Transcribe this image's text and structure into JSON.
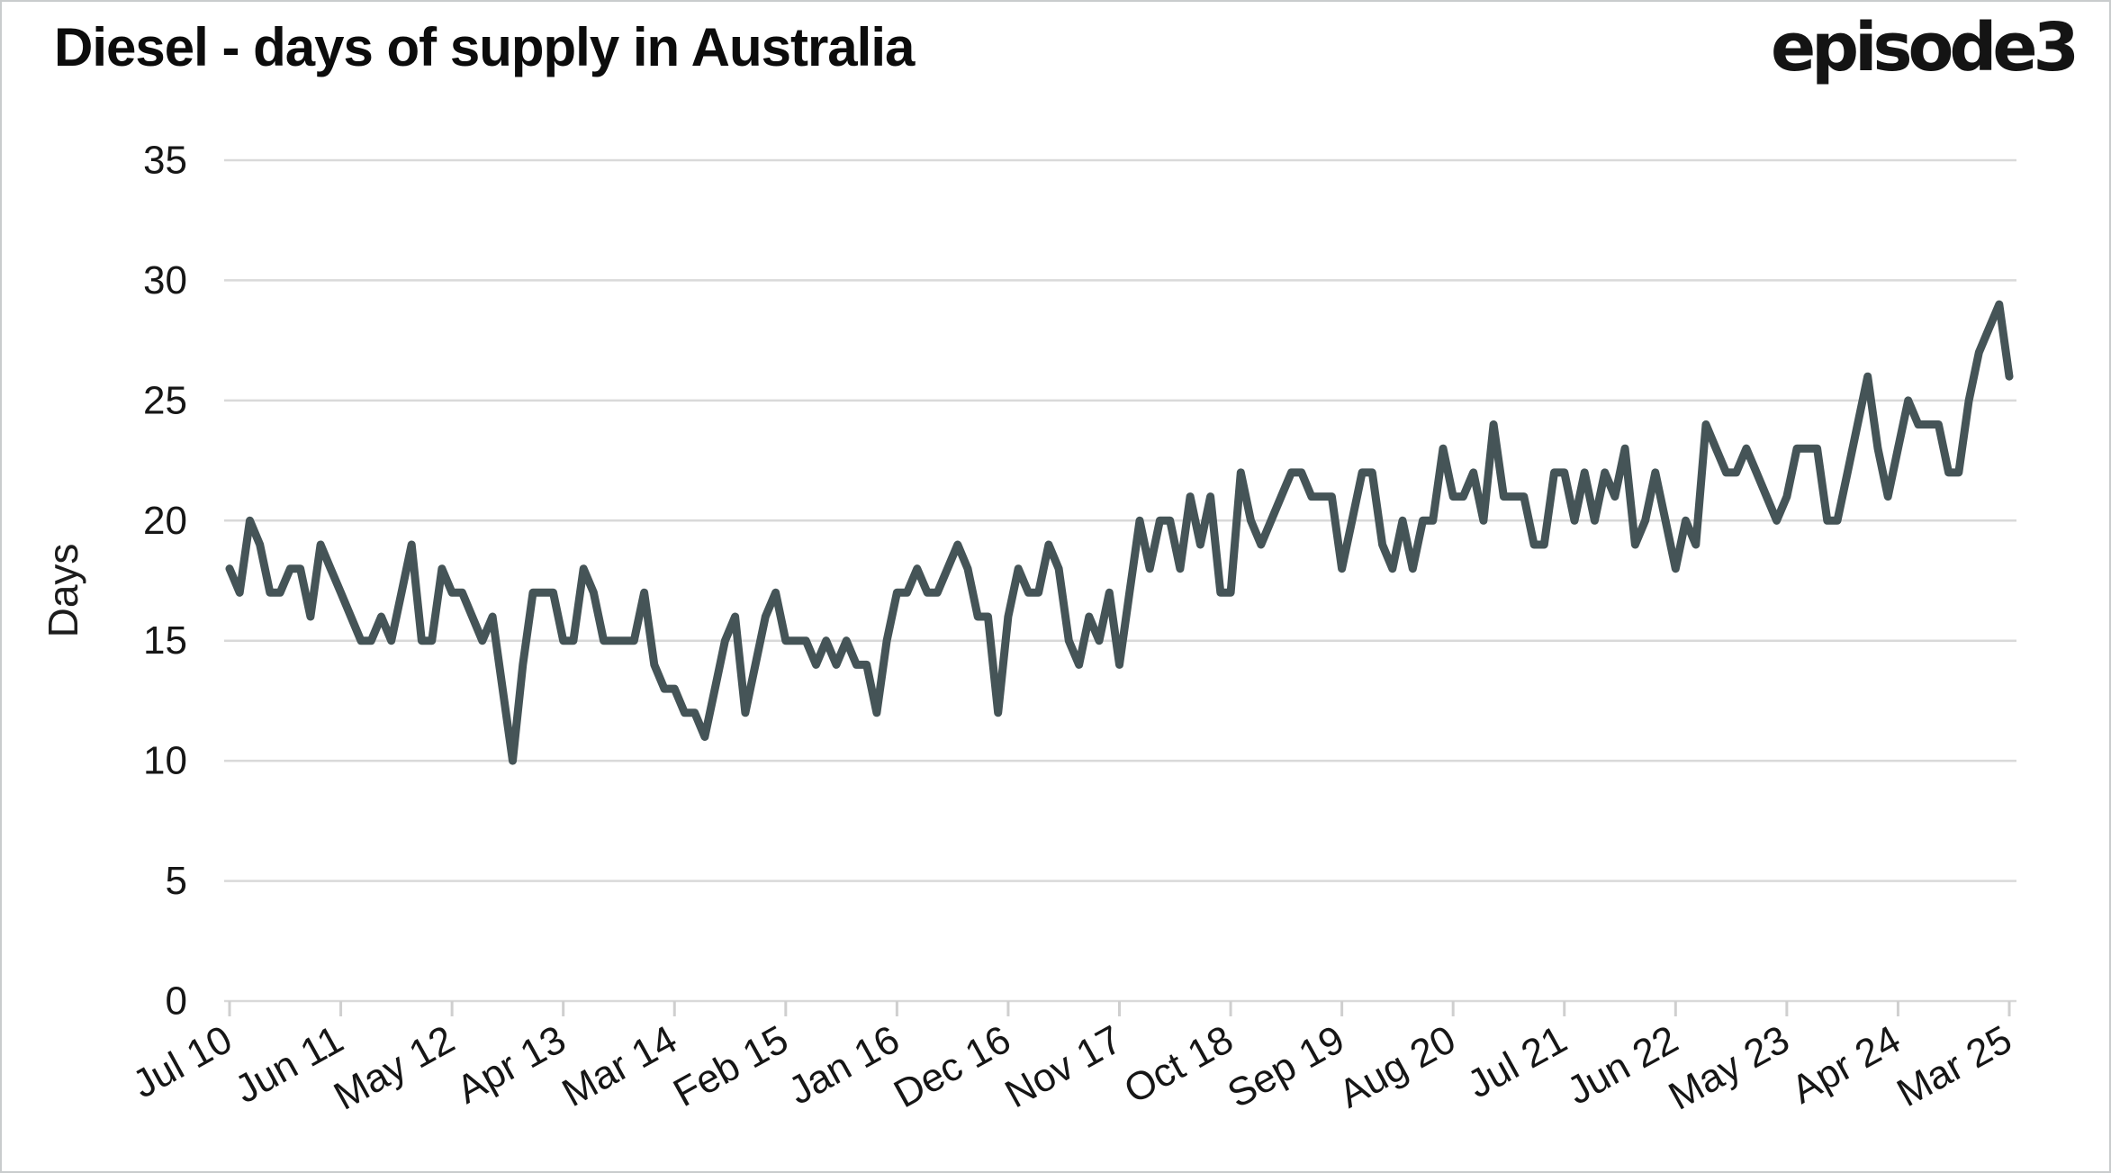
{
  "header": {
    "title": "Diesel - days of supply in Australia",
    "brand": "episode3"
  },
  "y_axis": {
    "label": "Days",
    "ticks": [
      0,
      5,
      10,
      15,
      20,
      25,
      30,
      35
    ]
  },
  "x_axis": {
    "ticks": [
      "Jul 10",
      "Jun 11",
      "May 12",
      "Apr 13",
      "Mar 14",
      "Feb 15",
      "Jan 16",
      "Dec 16",
      "Nov 17",
      "Oct 18",
      "Sep 19",
      "Aug 20",
      "Jul 21",
      "Jun 22",
      "May 23",
      "Apr 24",
      "Mar 25"
    ]
  },
  "chart_data": {
    "type": "line",
    "title": "Diesel - days of supply in Australia",
    "xlabel": "",
    "ylabel": "Days",
    "ylim": [
      0,
      35
    ],
    "grid": true,
    "legend_position": "none",
    "series_name": "Diesel days of supply",
    "frequency": "monthly",
    "start_month": "Jul 2010",
    "end_month": "Mar 2025",
    "x_tick_labels": [
      "Jul 10",
      "Jun 11",
      "May 12",
      "Apr 13",
      "Mar 14",
      "Feb 15",
      "Jan 16",
      "Dec 16",
      "Nov 17",
      "Oct 18",
      "Sep 19",
      "Aug 20",
      "Jul 21",
      "Jun 22",
      "May 23",
      "Apr 24",
      "Mar 25"
    ],
    "x_tick_every_n_points": 11,
    "y_tick_values": [
      0,
      5,
      10,
      15,
      20,
      25,
      30,
      35
    ],
    "values": [
      18,
      17,
      20,
      19,
      17,
      17,
      18,
      18,
      16,
      19,
      18,
      17,
      16,
      15,
      15,
      16,
      15,
      17,
      19,
      15,
      15,
      18,
      17,
      17,
      16,
      15,
      16,
      13,
      10,
      14,
      17,
      17,
      17,
      15,
      15,
      18,
      17,
      15,
      15,
      15,
      15,
      17,
      14,
      13,
      13,
      12,
      12,
      11,
      13,
      15,
      16,
      12,
      14,
      16,
      17,
      15,
      15,
      15,
      14,
      15,
      14,
      15,
      14,
      14,
      12,
      15,
      17,
      17,
      18,
      17,
      17,
      18,
      19,
      18,
      16,
      16,
      12,
      16,
      18,
      17,
      17,
      19,
      18,
      15,
      14,
      16,
      15,
      17,
      14,
      17,
      20,
      18,
      20,
      20,
      18,
      21,
      19,
      21,
      17,
      17,
      22,
      20,
      19,
      20,
      21,
      22,
      22,
      21,
      21,
      21,
      18,
      20,
      22,
      22,
      19,
      18,
      20,
      18,
      20,
      20,
      23,
      21,
      21,
      22,
      20,
      24,
      21,
      21,
      21,
      19,
      19,
      22,
      22,
      20,
      22,
      20,
      22,
      21,
      23,
      19,
      20,
      22,
      20,
      18,
      20,
      19,
      24,
      23,
      22,
      22,
      23,
      22,
      21,
      20,
      21,
      23,
      23,
      23,
      20,
      20,
      22,
      24,
      26,
      23,
      21,
      23,
      25,
      24,
      24,
      24,
      22,
      22,
      25,
      27,
      28,
      29,
      26
    ],
    "line_color": "#455457",
    "grid_color": "#d9d9d9",
    "tick_mark_color": "#cfcfcf",
    "label_color": "#161616"
  }
}
